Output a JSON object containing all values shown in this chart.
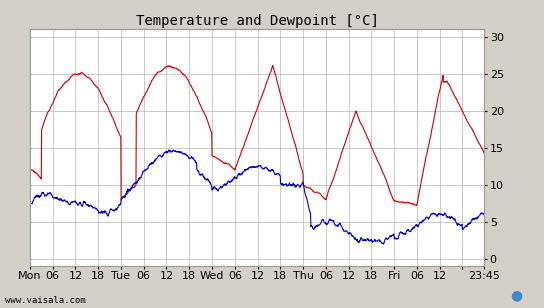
{
  "title": "Temperature and Dewpoint [°C]",
  "ylabel_right_ticks": [
    0,
    5,
    10,
    15,
    20,
    25,
    30
  ],
  "ylim": [
    -1,
    31
  ],
  "xlim": [
    0,
    119.75
  ],
  "x_tick_positions": [
    0,
    6,
    12,
    18,
    24,
    30,
    36,
    42,
    48,
    54,
    60,
    66,
    72,
    78,
    84,
    90,
    96,
    102,
    108,
    114,
    119.75
  ],
  "x_tick_labels": [
    "Mon",
    "06",
    "12",
    "18",
    "Tue",
    "06",
    "12",
    "18",
    "Wed",
    "06",
    "12",
    "18",
    "Thu",
    "06",
    "12",
    "18",
    "Fri",
    "06",
    "12",
    "",
    "23:45"
  ],
  "bg_color": "#d4d0c8",
  "plot_bg_color": "#ffffff",
  "grid_color": "#c0c0c0",
  "temp_color": "#cc0000",
  "dew_color": "#0000cc",
  "line_width": 0.8,
  "watermark": "www.vaisala.com",
  "title_fontsize": 10,
  "tick_fontsize": 8
}
